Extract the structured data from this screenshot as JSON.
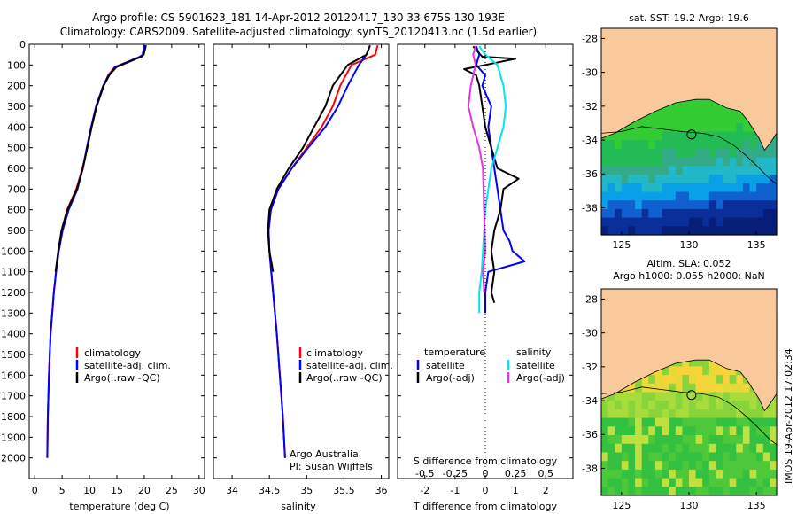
{
  "header": {
    "line1": "Argo profile: CS 5901623_181 14-Apr-2012 20120417_130 33.675S 130.193E",
    "line2": "Climatology: CARS2009. Satellite-adjusted climatology: synTS_20120413.nc (1.5d earlier)"
  },
  "credit": {
    "line1": "Argo Australia",
    "line2": "PI: Susan Wijffels",
    "vertical_stamp": "IMOS 19-Apr-2012 17:02:34"
  },
  "colors": {
    "climatology": "#ff0000",
    "satellite": "#0000ff",
    "argo": "#000000",
    "salinity_satellite": "#00e5ee",
    "salinity_argo": "#e633e6",
    "land": "#f9c89b"
  },
  "chart_data": [
    {
      "type": "line",
      "ylabel": "",
      "xlabel": "temperature (deg C)",
      "xlim": [
        -1,
        31
      ],
      "ylim": [
        2100,
        0
      ],
      "x_ticks": [
        0,
        5,
        10,
        15,
        20,
        25,
        30
      ],
      "y_ticks": [
        0,
        100,
        200,
        300,
        400,
        500,
        600,
        700,
        800,
        900,
        1000,
        1100,
        1200,
        1300,
        1400,
        1500,
        1600,
        1700,
        1800,
        1900,
        2000
      ],
      "legend": [
        "climatology",
        "satellite-adj. clim.",
        "Argo(..raw -QC)"
      ],
      "series": [
        {
          "name": "climatology",
          "color": "#ff0000",
          "depth": [
            5,
            50,
            60,
            110,
            150,
            200,
            300,
            400,
            500,
            600,
            700,
            800,
            900,
            1000,
            1100,
            1200,
            1300,
            1400,
            1600,
            1800,
            2000
          ],
          "values": [
            20.1,
            19.8,
            19.3,
            14.6,
            13.4,
            12.6,
            11.3,
            10.4,
            9.6,
            8.7,
            7.6,
            5.9,
            4.9,
            4.3,
            3.9,
            3.5,
            3.2,
            2.9,
            2.6,
            2.4,
            2.3
          ]
        },
        {
          "name": "satellite-adj. clim.",
          "color": "#0000ff",
          "depth": [
            5,
            50,
            60,
            110,
            150,
            200,
            300,
            400,
            500,
            600,
            700,
            800,
            900,
            1000,
            1100,
            1200,
            1300,
            1400,
            1600,
            1800,
            2000
          ],
          "values": [
            20.0,
            19.7,
            19.2,
            14.7,
            13.5,
            12.5,
            11.2,
            10.3,
            9.5,
            8.8,
            7.8,
            6.2,
            5.1,
            4.4,
            3.9,
            3.5,
            3.2,
            2.9,
            2.6,
            2.4,
            2.3
          ]
        },
        {
          "name": "Argo(..raw -QC)",
          "color": "#000000",
          "depth": [
            5,
            50,
            60,
            110,
            150,
            200,
            300,
            400,
            500,
            600,
            700,
            800,
            900,
            1000,
            1100
          ],
          "values": [
            20.3,
            19.9,
            19.5,
            14.9,
            13.6,
            12.6,
            11.3,
            10.4,
            9.6,
            8.8,
            7.7,
            6.0,
            4.9,
            4.3,
            3.8
          ]
        }
      ]
    },
    {
      "type": "line",
      "xlabel": "salinity",
      "xlim": [
        33.75,
        36.1
      ],
      "ylim": [
        2100,
        0
      ],
      "x_ticks": [
        34,
        34.5,
        35,
        35.5,
        36
      ],
      "legend": [
        "climatology",
        "satellite-adj. clim.",
        "Argo(..raw -QC)"
      ],
      "series": [
        {
          "name": "climatology",
          "color": "#ff0000",
          "depth": [
            5,
            50,
            100,
            200,
            300,
            400,
            500,
            600,
            700,
            800,
            900,
            1000,
            1200,
            1400,
            1600,
            1800,
            2000
          ],
          "values": [
            35.95,
            35.92,
            35.6,
            35.45,
            35.35,
            35.2,
            35.0,
            34.8,
            34.62,
            34.52,
            34.49,
            34.5,
            34.55,
            34.6,
            34.64,
            34.68,
            34.71
          ]
        },
        {
          "name": "satellite-adj. clim.",
          "color": "#0000ff",
          "depth": [
            5,
            50,
            100,
            200,
            300,
            400,
            500,
            600,
            700,
            800,
            900,
            1000,
            1200,
            1400,
            1600,
            1800,
            2000
          ],
          "values": [
            35.85,
            35.8,
            35.7,
            35.55,
            35.42,
            35.25,
            35.02,
            34.8,
            34.62,
            34.52,
            34.49,
            34.5,
            34.55,
            34.6,
            34.64,
            34.68,
            34.71
          ]
        },
        {
          "name": "Argo(..raw -QC)",
          "color": "#000000",
          "depth": [
            5,
            50,
            100,
            200,
            300,
            400,
            500,
            600,
            700,
            800,
            900,
            1000,
            1100
          ],
          "values": [
            35.85,
            35.8,
            35.55,
            35.35,
            35.25,
            35.1,
            34.95,
            34.76,
            34.6,
            34.5,
            34.48,
            34.5,
            34.55
          ]
        }
      ]
    },
    {
      "type": "line",
      "xlabel": "T difference from climatology",
      "xlabel_top": "S difference from climatology",
      "xlim": [
        -2.9,
        2.9
      ],
      "ylim": [
        2100,
        0
      ],
      "x_ticks": [
        -2,
        -1,
        0,
        1,
        2
      ],
      "x_ticks_top": [
        "-0.5",
        "-0.25",
        "0",
        "0.25",
        "0.5"
      ],
      "legend_titles": [
        "temperature",
        "salinity"
      ],
      "legend": [
        "satellite",
        "Argo(-adj)",
        "satellite",
        "Argo(-adj)"
      ],
      "series": [
        {
          "name": "temperature satellite",
          "color": "#0000ff",
          "depth": [
            10,
            50,
            100,
            150,
            200,
            300,
            400,
            500,
            600,
            700,
            800,
            900,
            950,
            1000,
            1050,
            1100,
            1200,
            1300
          ],
          "values": [
            -0.3,
            -0.2,
            -0.3,
            0.0,
            -0.1,
            0.2,
            0.1,
            0.2,
            0.3,
            0.4,
            0.5,
            0.6,
            0.8,
            0.9,
            1.3,
            0.1,
            0.0,
            0.0
          ]
        },
        {
          "name": "temperature Argo(-adj)",
          "color": "#000000",
          "depth": [
            10,
            60,
            70,
            100,
            120,
            150,
            200,
            300,
            400,
            500,
            600,
            650,
            700,
            800,
            900,
            1000,
            1100,
            1200,
            1250
          ],
          "values": [
            -0.4,
            -0.1,
            1.0,
            0.0,
            -0.7,
            -0.3,
            -0.2,
            -0.1,
            0.0,
            0.2,
            0.4,
            1.1,
            0.6,
            0.5,
            0.3,
            0.2,
            0.3,
            0.2,
            0.3
          ]
        },
        {
          "name": "salinity satellite",
          "color": "#00e5ee",
          "depth": [
            10,
            50,
            100,
            200,
            300,
            400,
            500,
            600,
            800,
            1000,
            1100,
            1200,
            1300
          ],
          "values": [
            -0.05,
            0.0,
            0.1,
            0.15,
            0.17,
            0.15,
            0.1,
            0.05,
            0.0,
            -0.02,
            -0.03,
            -0.05,
            -0.05
          ]
        },
        {
          "name": "salinity Argo(-adj)",
          "color": "#e633e6",
          "depth": [
            10,
            50,
            100,
            200,
            300,
            400,
            500,
            600,
            800,
            1000,
            1100,
            1200
          ],
          "values": [
            -0.08,
            -0.1,
            -0.08,
            -0.12,
            -0.14,
            -0.1,
            -0.05,
            -0.02,
            -0.01,
            0.0,
            -0.02,
            -0.01
          ]
        }
      ]
    },
    {
      "type": "heatmap",
      "title": "sat. SST: 19.2  Argo: 19.6",
      "xlim": [
        123.5,
        136.5
      ],
      "ylim": [
        -39.6,
        -27.4
      ],
      "x_ticks": [
        125,
        130,
        135
      ],
      "y_ticks": [
        -28,
        -30,
        -32,
        -34,
        -36,
        -38
      ],
      "float_position": [
        130.193,
        -33.675
      ]
    },
    {
      "type": "heatmap",
      "title_line1": "Altim. SLA: 0.052",
      "title_line2": "Argo h1000: 0.055 h2000: NaN",
      "xlim": [
        123.5,
        136.5
      ],
      "ylim": [
        -39.6,
        -27.4
      ],
      "x_ticks": [
        125,
        130,
        135
      ],
      "y_ticks": [
        -28,
        -30,
        -32,
        -34,
        -36,
        -38
      ],
      "float_position": [
        130.193,
        -33.675
      ]
    }
  ]
}
